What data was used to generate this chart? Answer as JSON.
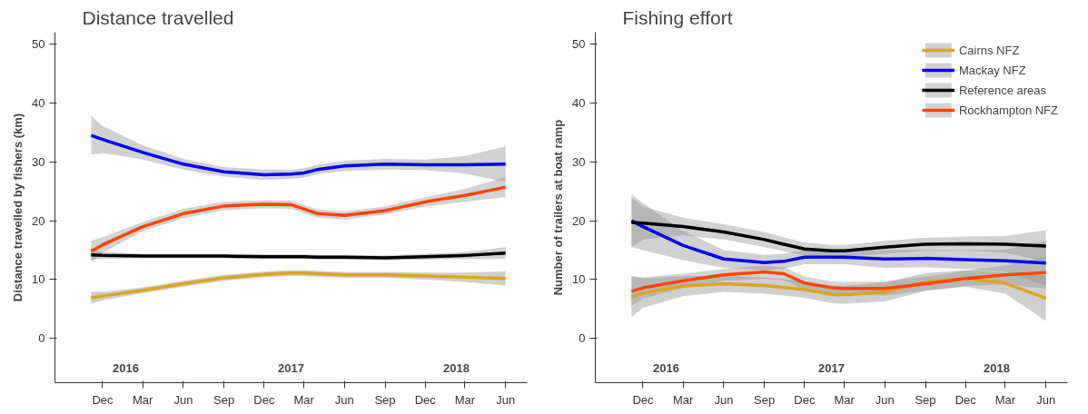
{
  "chart_data": [
    {
      "type": "line",
      "title": "Distance travelled",
      "ylabel": "Distance travelled by fishers (km)",
      "legend": false,
      "grid": false,
      "x": [
        "2015-11-05",
        "2015-12-01",
        "2016-03-01",
        "2016-06-01",
        "2016-09-01",
        "2016-12-01",
        "2017-02-01",
        "2017-03-01",
        "2017-04-01",
        "2017-06-01",
        "2017-09-01",
        "2017-12-01",
        "2018-03-01",
        "2018-06-01"
      ],
      "xlim": [
        "2015-08-15",
        "2018-07-20"
      ],
      "ylim": [
        -7.5,
        52
      ],
      "yticks": [
        0,
        10,
        20,
        30,
        40,
        50
      ],
      "xticks": [
        {
          "value": "2015-12-01",
          "label": "Dec"
        },
        {
          "value": "2016-03-01",
          "label": "Mar"
        },
        {
          "value": "2016-06-01",
          "label": "Jun"
        },
        {
          "value": "2016-09-01",
          "label": "Sep"
        },
        {
          "value": "2016-12-01",
          "label": "Dec"
        },
        {
          "value": "2017-03-01",
          "label": "Mar"
        },
        {
          "value": "2017-06-01",
          "label": "Jun"
        },
        {
          "value": "2017-09-01",
          "label": "Sep"
        },
        {
          "value": "2017-12-01",
          "label": "Dec"
        },
        {
          "value": "2018-03-01",
          "label": "Mar"
        },
        {
          "value": "2018-06-01",
          "label": "Jun"
        }
      ],
      "annotations": [
        "2016",
        "2017",
        "2018"
      ],
      "series": [
        {
          "color": "#daa520",
          "values": [
            6.9,
            7.2,
            8.2,
            9.3,
            10.3,
            10.9,
            11.1,
            11.1,
            11.0,
            10.8,
            10.8,
            10.6,
            10.4,
            10.2
          ],
          "lower": [
            5.9,
            6.5,
            7.7,
            8.8,
            9.8,
            10.4,
            10.6,
            10.6,
            10.5,
            10.3,
            10.3,
            10.0,
            9.6,
            9.0
          ],
          "upper": [
            7.9,
            7.9,
            8.7,
            9.8,
            10.8,
            11.4,
            11.6,
            11.6,
            11.5,
            11.3,
            11.3,
            11.2,
            11.2,
            11.4
          ]
        },
        {
          "color": "#0000ff",
          "values": [
            34.5,
            33.8,
            31.6,
            29.6,
            28.3,
            27.8,
            27.9,
            28.1,
            28.7,
            29.3,
            29.6,
            29.5,
            29.5,
            29.6
          ],
          "lower": [
            31.2,
            31.5,
            30.4,
            28.7,
            27.5,
            26.9,
            27.1,
            27.3,
            27.9,
            28.4,
            28.7,
            28.6,
            28.0,
            26.6
          ],
          "upper": [
            37.8,
            36.1,
            32.8,
            30.5,
            29.1,
            28.7,
            28.7,
            28.9,
            29.5,
            30.2,
            30.5,
            30.4,
            31.0,
            32.6
          ]
        },
        {
          "color": "#000000",
          "values": [
            14.2,
            14.1,
            14.0,
            14.0,
            14.0,
            13.9,
            13.9,
            13.9,
            13.8,
            13.8,
            13.7,
            13.9,
            14.1,
            14.5
          ],
          "lower": [
            13.4,
            13.5,
            13.6,
            13.6,
            13.6,
            13.5,
            13.5,
            13.5,
            13.4,
            13.4,
            13.3,
            13.4,
            13.5,
            13.5
          ],
          "upper": [
            15.0,
            14.7,
            14.4,
            14.4,
            14.4,
            14.3,
            14.3,
            14.3,
            14.2,
            14.2,
            14.1,
            14.4,
            14.7,
            15.5
          ]
        },
        {
          "color": "#ff4500",
          "values": [
            14.8,
            15.9,
            19.0,
            21.2,
            22.5,
            22.8,
            22.7,
            22.0,
            21.2,
            20.9,
            21.7,
            23.2,
            24.3,
            25.7
          ],
          "lower": [
            13.0,
            14.6,
            18.2,
            20.4,
            21.8,
            22.1,
            22.0,
            21.3,
            20.5,
            20.2,
            21.0,
            22.4,
            23.2,
            24.0
          ],
          "upper": [
            16.6,
            17.2,
            19.8,
            22.0,
            23.2,
            23.5,
            23.4,
            22.7,
            21.9,
            21.6,
            22.4,
            24.0,
            25.4,
            27.4
          ]
        }
      ]
    },
    {
      "type": "line",
      "title": "Fishing effort",
      "ylabel": "Number of trailers at boat ramp",
      "legend": "top right",
      "grid": false,
      "x": [
        "2015-11-05",
        "2015-12-01",
        "2016-03-01",
        "2016-06-01",
        "2016-09-01",
        "2016-10-15",
        "2016-12-01",
        "2017-02-01",
        "2017-03-01",
        "2017-06-01",
        "2017-09-01",
        "2017-12-01",
        "2018-03-01",
        "2018-06-01"
      ],
      "xlim": [
        "2015-08-15",
        "2018-07-20"
      ],
      "ylim": [
        -7.5,
        52
      ],
      "yticks": [
        0,
        10,
        20,
        30,
        40,
        50
      ],
      "xticks": [
        {
          "value": "2015-12-01",
          "label": "Dec"
        },
        {
          "value": "2016-03-01",
          "label": "Mar"
        },
        {
          "value": "2016-06-01",
          "label": "Jun"
        },
        {
          "value": "2016-09-01",
          "label": "Sep"
        },
        {
          "value": "2016-12-01",
          "label": "Dec"
        },
        {
          "value": "2017-03-01",
          "label": "Mar"
        },
        {
          "value": "2017-06-01",
          "label": "Jun"
        },
        {
          "value": "2017-09-01",
          "label": "Sep"
        },
        {
          "value": "2017-12-01",
          "label": "Dec"
        },
        {
          "value": "2018-03-01",
          "label": "Mar"
        },
        {
          "value": "2018-06-01",
          "label": "Jun"
        }
      ],
      "annotations": [
        "2016",
        "2017",
        "2018"
      ],
      "series": [
        {
          "name": "Cairns NFZ",
          "color": "#daa520",
          "values": [
            7.1,
            7.7,
            8.9,
            9.3,
            9.0,
            8.7,
            8.3,
            7.5,
            7.4,
            7.9,
            9.6,
            10.2,
            9.4,
            6.8
          ],
          "lower": [
            3.6,
            5.2,
            7.2,
            7.9,
            7.6,
            7.3,
            6.9,
            6.0,
            5.9,
            6.3,
            8.1,
            8.8,
            7.6,
            3.0
          ],
          "upper": [
            10.6,
            10.2,
            10.6,
            10.7,
            10.4,
            10.1,
            9.7,
            9.0,
            8.9,
            9.5,
            11.1,
            11.6,
            11.2,
            10.6
          ]
        },
        {
          "name": "Mackay NFZ",
          "color": "#0000ff",
          "values": [
            20.0,
            19.0,
            15.8,
            13.5,
            12.9,
            13.1,
            13.8,
            13.8,
            13.8,
            13.5,
            13.6,
            13.4,
            13.2,
            12.8
          ],
          "lower": [
            15.5,
            15.0,
            13.3,
            12.0,
            11.6,
            11.8,
            12.6,
            12.6,
            12.6,
            12.0,
            12.1,
            11.8,
            11.3,
            9.0
          ],
          "upper": [
            24.5,
            23.0,
            18.3,
            15.0,
            14.2,
            14.4,
            15.0,
            15.0,
            15.0,
            15.0,
            15.1,
            15.0,
            15.1,
            16.6
          ]
        },
        {
          "name": "Reference areas",
          "color": "#000000",
          "values": [
            19.7,
            19.6,
            19.0,
            18.1,
            16.8,
            16.0,
            15.2,
            14.9,
            14.9,
            15.5,
            16.0,
            16.1,
            16.0,
            15.7
          ],
          "lower": [
            15.5,
            16.8,
            17.5,
            16.8,
            15.5,
            14.8,
            14.1,
            13.9,
            13.9,
            14.4,
            14.9,
            14.9,
            14.6,
            13.0
          ],
          "upper": [
            23.9,
            22.4,
            20.5,
            19.4,
            18.1,
            17.2,
            16.3,
            15.9,
            15.9,
            16.6,
            17.1,
            17.3,
            17.4,
            18.4
          ]
        },
        {
          "name": "Rockhampton NFZ",
          "color": "#ff4500",
          "values": [
            8.0,
            8.6,
            9.8,
            10.8,
            11.3,
            11.0,
            9.4,
            8.6,
            8.5,
            8.5,
            9.3,
            10.2,
            10.8,
            11.2
          ],
          "lower": [
            5.5,
            6.8,
            8.6,
            9.8,
            10.2,
            9.9,
            8.3,
            7.5,
            7.4,
            7.3,
            8.1,
            8.9,
            9.2,
            8.5
          ],
          "upper": [
            10.5,
            10.4,
            11.0,
            11.8,
            12.4,
            12.1,
            10.5,
            9.7,
            9.6,
            9.7,
            10.5,
            11.5,
            12.4,
            13.9
          ]
        }
      ]
    }
  ]
}
